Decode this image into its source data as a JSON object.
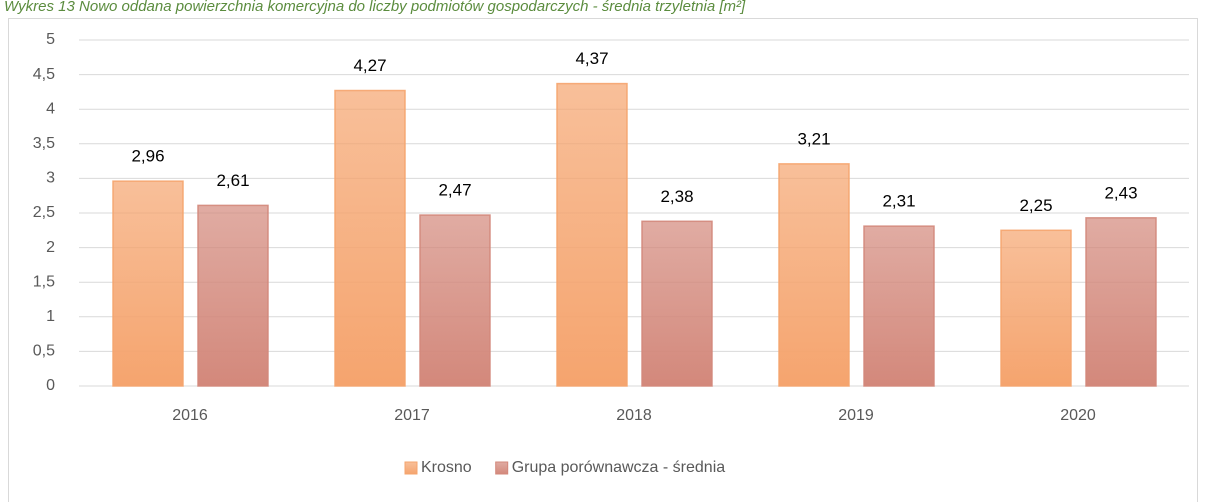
{
  "chart_data": {
    "type": "bar",
    "title": "Wykres 13 Nowo oddana powierzchnia komercyjna do liczby podmiotów gospodarczych - średnia trzyletnia [m²]",
    "categories": [
      "2016",
      "2017",
      "2018",
      "2019",
      "2020"
    ],
    "series": [
      {
        "name": "Krosno",
        "color": "#f5a46e",
        "values": [
          2.96,
          4.27,
          4.37,
          3.21,
          2.25
        ],
        "value_labels": [
          "2,96",
          "4,27",
          "4,37",
          "3,21",
          "2,25"
        ]
      },
      {
        "name": "Grupa porównawcza - średnia",
        "color": "#d3887b",
        "values": [
          2.61,
          2.47,
          2.38,
          2.31,
          2.43
        ],
        "value_labels": [
          "2,61",
          "2,47",
          "2,38",
          "2,31",
          "2,43"
        ]
      }
    ],
    "ylim": [
      0,
      5
    ],
    "yticks": [
      0,
      {
        "value": 0.5,
        "label": "0,5"
      },
      1,
      {
        "value": 1.5,
        "label": "1,5"
      },
      2,
      {
        "value": 2.5,
        "label": "2,5"
      },
      3,
      {
        "value": 3.5,
        "label": "3,5"
      },
      4,
      {
        "value": 4.5,
        "label": "4,5"
      },
      5
    ],
    "grid": true,
    "legend": "bottom"
  }
}
